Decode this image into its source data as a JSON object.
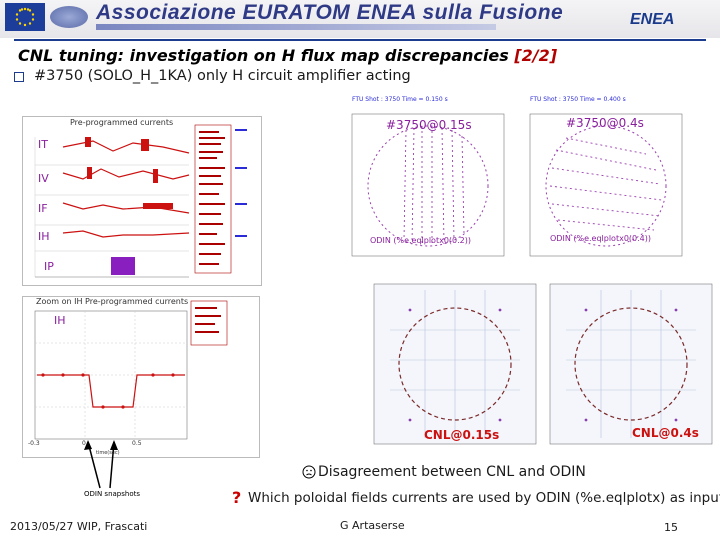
{
  "header": {
    "banner_title": "Associazione EURATOM ENEA sulla Fusione",
    "enea_logo": "ENEA"
  },
  "slide": {
    "title": "CNL tuning: investigation on H flux map discrepancies",
    "title_num": "[2/2]",
    "subtitle": "#3750 (SOLO_H_1KA) only H circuit amplifier acting"
  },
  "left_panel": {
    "title": "Pre-programmed currents",
    "labels": [
      "IT",
      "IV",
      "IF",
      "IH",
      "IP"
    ],
    "zoom_title": "Zoom on IH Pre-programmed currents",
    "zoom_label": "IH",
    "zoom_xticks": [
      "-0.3",
      "0",
      "0.5"
    ],
    "zoom_xlabel": "time(sec)",
    "odin_snapshots": "ODIN snapshots"
  },
  "odin_panels": [
    {
      "header": "FTU Shot : 3750     Time = 0.150 s",
      "label": "#3750@0.15s",
      "caption": "ODIN (%e.eqlplotx0(0.2))"
    },
    {
      "header": "FTU Shot : 3750     Time = 0.400 s",
      "label": "#3750@0.4s",
      "caption": "ODIN (%e.eqlplotx0(0.4))"
    }
  ],
  "cnl_panels": [
    {
      "label": "CNL@0.15s"
    },
    {
      "label": "CNL@0.4s"
    }
  ],
  "bottom": {
    "disagree_icon": "frown-icon",
    "disagree": "Disagreement between CNL and ODIN",
    "question": "Which poloidal fields currents are used by ODIN (%e.eqlplotx) as inputs"
  },
  "footer": {
    "date_place": "2013/05/27   WIP, Frascati",
    "author": "G Artaserse",
    "page": "15"
  },
  "colors": {
    "accent": "#1d3c8f",
    "title_num": "#b00000",
    "plot_label": "#8a1f9e",
    "red": "#cc1111"
  }
}
